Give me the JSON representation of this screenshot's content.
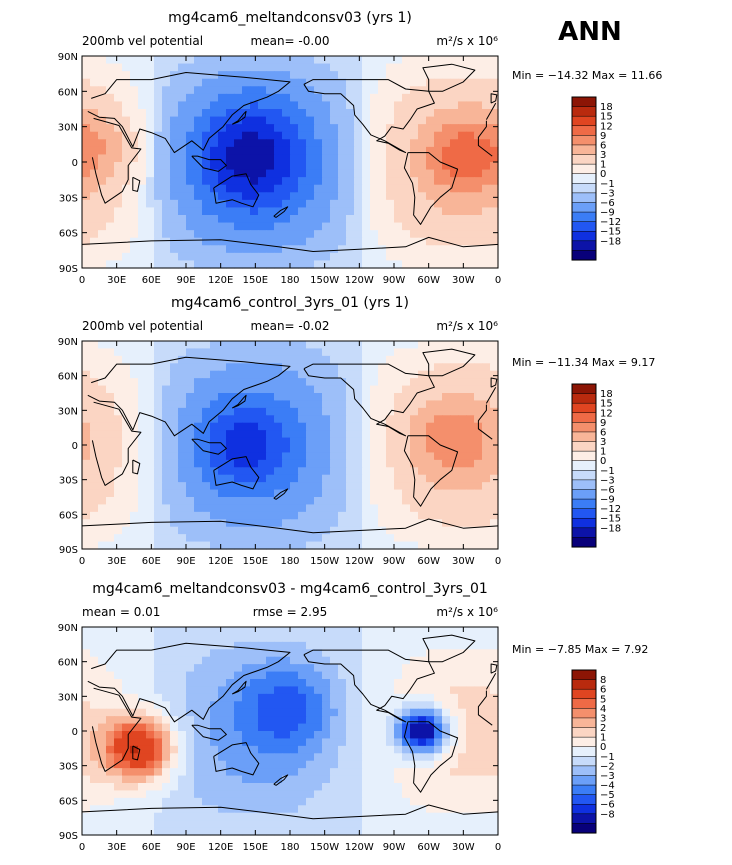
{
  "season": "ANN",
  "colors": {
    "vel_levels": [
      "#08007a",
      "#0c13a8",
      "#0f30e0",
      "#2257f2",
      "#3b7df6",
      "#6b9ff8",
      "#9dbff9",
      "#c7dbfa",
      "#e6f0fc",
      "#fdeee6",
      "#fbd5c3",
      "#f8b598",
      "#f48f6c",
      "#ef6a46",
      "#e04521",
      "#b92a0e",
      "#8c1505"
    ],
    "land_outline": "#000000"
  },
  "chart_data": [
    {
      "type": "heatmap",
      "title": "mg4cam6_meltandconsv03 (yrs 1)",
      "left_label": "200mb vel potential",
      "center_label": "mean=   -0.00",
      "units": "m²/s x 10⁶",
      "stats": "Min = −14.32 Max =  11.66",
      "x_ticks": [
        "0",
        "30E",
        "60E",
        "90E",
        "120E",
        "150E",
        "180",
        "150W",
        "120W",
        "90W",
        "60W",
        "30W",
        "0"
      ],
      "y_ticks": [
        "90N",
        "60N",
        "30N",
        "0",
        "30S",
        "60S",
        "90S"
      ],
      "colorbar_labels": [
        "18",
        "15",
        "12",
        "9",
        "6",
        "3",
        "1",
        "0",
        "−1",
        "−3",
        "−6",
        "−9",
        "−12",
        "−15",
        "−18"
      ],
      "field": {
        "base_amplitude": 7.5,
        "min_centers": [
          {
            "lon": 145,
            "lat": 5,
            "value": -14.3,
            "width": 48
          },
          {
            "lon": 190,
            "lat": -40,
            "value": -3,
            "width": 40
          }
        ],
        "max_centers": [
          {
            "lon": 330,
            "lat": 5,
            "value": 11.7,
            "width": 30
          },
          {
            "lon": 15,
            "lat": 15,
            "value": 7,
            "width": 30
          }
        ]
      }
    },
    {
      "type": "heatmap",
      "title": "mg4cam6_control_3yrs_01 (yrs 1)",
      "left_label": "200mb vel potential",
      "center_label": "mean=   -0.02",
      "units": "m²/s x 10⁶",
      "stats": "Min = −11.34 Max =   9.17",
      "x_ticks": [
        "0",
        "30E",
        "60E",
        "90E",
        "120E",
        "150E",
        "180",
        "150W",
        "120W",
        "90W",
        "60W",
        "30W",
        "0"
      ],
      "y_ticks": [
        "90N",
        "60N",
        "30N",
        "0",
        "30S",
        "60S",
        "90S"
      ],
      "colorbar_labels": [
        "18",
        "15",
        "12",
        "9",
        "6",
        "3",
        "1",
        "0",
        "−1",
        "−3",
        "−6",
        "−9",
        "−12",
        "−15",
        "−18"
      ],
      "field": {
        "base_amplitude": 6.5,
        "min_centers": [
          {
            "lon": 140,
            "lat": 0,
            "value": -11.3,
            "width": 40
          }
        ],
        "max_centers": [
          {
            "lon": 320,
            "lat": 5,
            "value": 9.2,
            "width": 35
          }
        ]
      }
    },
    {
      "type": "heatmap",
      "title": "mg4cam6_meltandconsv03 - mg4cam6_control_3yrs_01",
      "left_label": "mean =    0.01",
      "center_label": "rmse =    2.95",
      "units": "m²/s x 10⁶",
      "stats": "Min =  −7.85 Max =   7.92",
      "x_ticks": [
        "0",
        "30E",
        "60E",
        "90E",
        "120E",
        "150E",
        "180",
        "150W",
        "120W",
        "90W",
        "60W",
        "30W",
        "0"
      ],
      "y_ticks": [
        "90N",
        "60N",
        "30N",
        "0",
        "30S",
        "60S",
        "90S"
      ],
      "colorbar_labels": [
        "8",
        "6",
        "5",
        "4",
        "3",
        "2",
        "1",
        "0",
        "−1",
        "−2",
        "−3",
        "−4",
        "−5",
        "−6",
        "−8"
      ],
      "field": {
        "base_amplitude": 2.5,
        "min_centers": [
          {
            "lon": 295,
            "lat": 0,
            "value": -7.9,
            "width": 22
          },
          {
            "lon": 180,
            "lat": 20,
            "value": -4,
            "width": 40
          }
        ],
        "max_centers": [
          {
            "lon": 50,
            "lat": -15,
            "value": 7.9,
            "width": 30
          }
        ]
      }
    }
  ]
}
